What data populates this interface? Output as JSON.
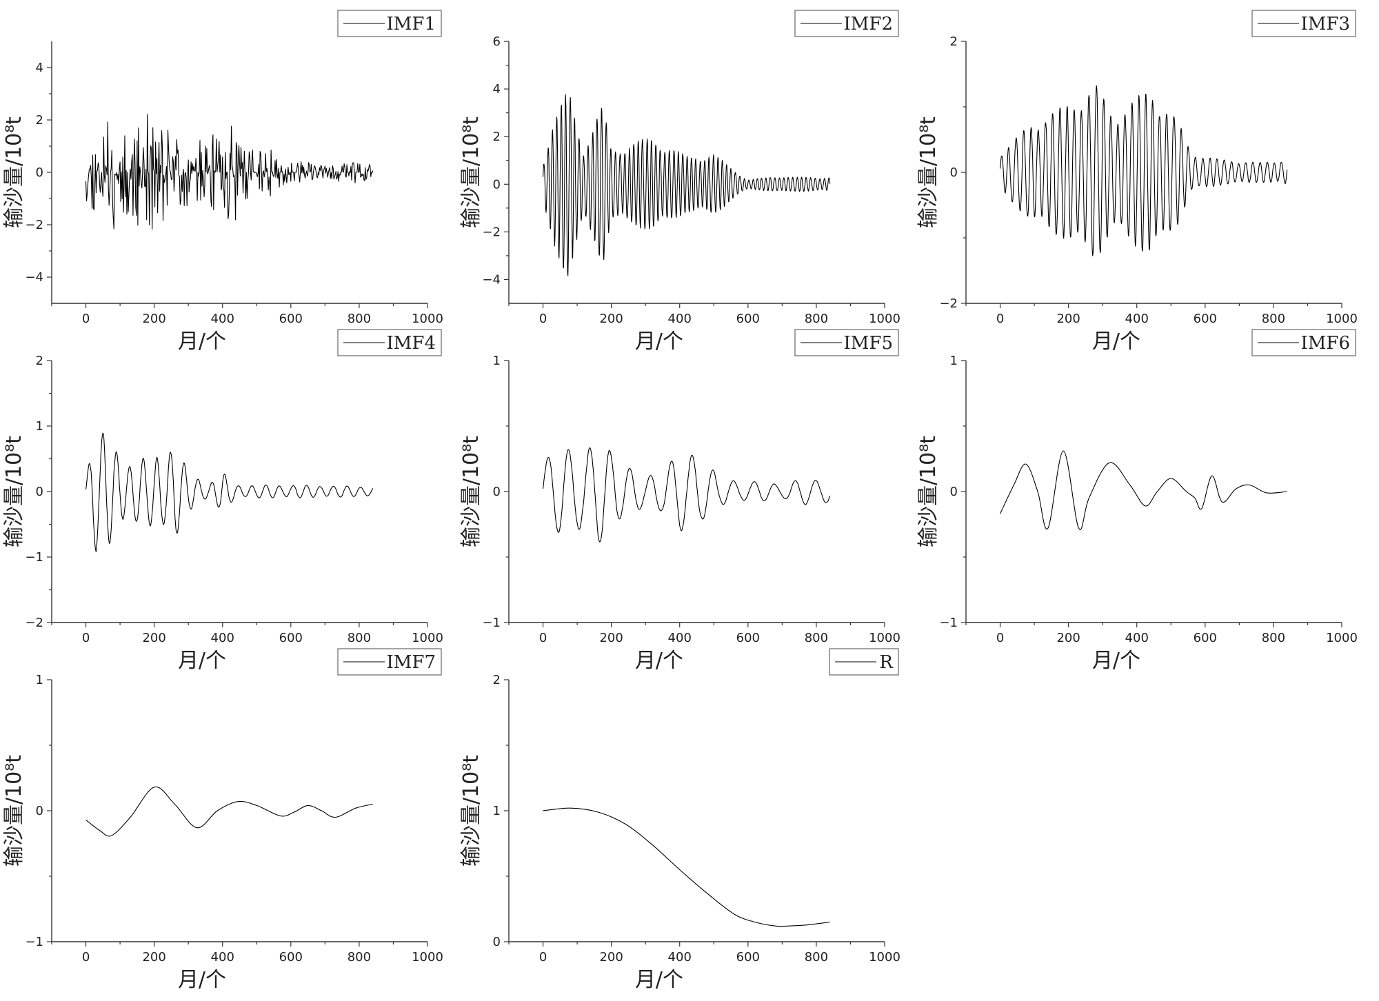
{
  "chart_data": [
    {
      "type": "line",
      "series": [
        {
          "name": "IMF1",
          "generator": {
            "mode": "noise",
            "amps": [
              [
                0,
                1.3
              ],
              [
                60,
                1.8
              ],
              [
                85,
                2.9
              ],
              [
                100,
                1.5
              ],
              [
                180,
                2.3
              ],
              [
                250,
                1.7
              ],
              [
                330,
                1.2
              ],
              [
                440,
                2.1
              ],
              [
                460,
                1.0
              ],
              [
                520,
                1.2
              ],
              [
                580,
                0.5
              ],
              [
                700,
                0.3
              ],
              [
                790,
                0.45
              ],
              [
                840,
                0.3
              ]
            ],
            "seed": 11,
            "step": 2
          }
        }
      ],
      "xlabel": "月/个",
      "ylabel": "输沙量/10⁸t",
      "xlim": [
        -100,
        1000
      ],
      "ylim": [
        -5,
        5
      ],
      "xticks": [
        0,
        200,
        400,
        600,
        800,
        1000
      ],
      "yticks": [
        -4,
        -2,
        0,
        2,
        4
      ],
      "grid": false,
      "legend": "top-right"
    },
    {
      "type": "line",
      "series": [
        {
          "name": "IMF2",
          "generator": {
            "mode": "osc",
            "period": 13,
            "amps": [
              [
                0,
                1.0
              ],
              [
                30,
                2.6
              ],
              [
                75,
                4.1
              ],
              [
                120,
                1.5
              ],
              [
                175,
                3.4
              ],
              [
                200,
                1.5
              ],
              [
                320,
                2.0
              ],
              [
                420,
                1.2
              ],
              [
                500,
                1.3
              ],
              [
                560,
                0.6
              ],
              [
                600,
                0.2
              ],
              [
                700,
                0.35
              ],
              [
                740,
                0.3
              ],
              [
                840,
                0.3
              ]
            ],
            "seed": 22
          }
        }
      ],
      "xlabel": "月/个",
      "ylabel": "输沙量/10⁸t",
      "xlim": [
        -100,
        1000
      ],
      "ylim": [
        -5,
        6
      ],
      "xticks": [
        0,
        200,
        400,
        600,
        800,
        1000
      ],
      "yticks": [
        -4,
        -2,
        0,
        2,
        4,
        6
      ],
      "grid": false,
      "legend": "top-right"
    },
    {
      "type": "line",
      "series": [
        {
          "name": "IMF3",
          "generator": {
            "mode": "osc",
            "period": 21,
            "amps": [
              [
                0,
                0.3
              ],
              [
                60,
                0.6
              ],
              [
                100,
                0.8
              ],
              [
                180,
                1.0
              ],
              [
                280,
                1.35
              ],
              [
                330,
                0.9
              ],
              [
                440,
                1.3
              ],
              [
                520,
                0.8
              ],
              [
                560,
                0.3
              ],
              [
                640,
                0.2
              ],
              [
                760,
                0.15
              ],
              [
                840,
                0.2
              ]
            ],
            "seed": 33
          }
        }
      ],
      "xlabel": "月/个",
      "ylabel": "输沙量/10⁸t",
      "xlim": [
        -100,
        1000
      ],
      "ylim": [
        -2,
        2
      ],
      "xticks": [
        0,
        200,
        400,
        600,
        800,
        1000
      ],
      "yticks": [
        -2,
        0,
        2
      ],
      "grid": false,
      "legend": "top-right"
    },
    {
      "type": "line",
      "series": [
        {
          "name": "IMF4",
          "generator": {
            "mode": "osc",
            "period": 40,
            "amps": [
              [
                0,
                0.3
              ],
              [
                30,
                1.0
              ],
              [
                70,
                0.8
              ],
              [
                120,
                0.45
              ],
              [
                200,
                0.55
              ],
              [
                260,
                0.75
              ],
              [
                300,
                0.3
              ],
              [
                360,
                0.12
              ],
              [
                400,
                0.3
              ],
              [
                440,
                0.1
              ],
              [
                600,
                0.1
              ],
              [
                800,
                0.08
              ],
              [
                840,
                0.08
              ]
            ],
            "seed": 44
          }
        }
      ],
      "xlabel": "月/个",
      "ylabel": "输沙量/10⁸t",
      "xlim": [
        -100,
        1000
      ],
      "ylim": [
        -2,
        2
      ],
      "xticks": [
        0,
        200,
        400,
        600,
        800,
        1000
      ],
      "yticks": [
        -2,
        -1,
        0,
        1,
        2
      ],
      "grid": false,
      "legend": "top-right"
    },
    {
      "type": "line",
      "series": [
        {
          "name": "IMF5",
          "generator": {
            "mode": "osc",
            "period": 60,
            "amps": [
              [
                0,
                0.3
              ],
              [
                80,
                0.33
              ],
              [
                160,
                0.4
              ],
              [
                230,
                0.25
              ],
              [
                300,
                0.1
              ],
              [
                400,
                0.3
              ],
              [
                460,
                0.3
              ],
              [
                520,
                0.1
              ],
              [
                700,
                0.06
              ],
              [
                760,
                0.1
              ],
              [
                840,
                0.1
              ]
            ],
            "seed": 55
          }
        }
      ],
      "xlabel": "月/个",
      "ylabel": "输沙量/10⁸t",
      "xlim": [
        -100,
        1000
      ],
      "ylim": [
        -1,
        1
      ],
      "xticks": [
        0,
        200,
        400,
        600,
        800,
        1000
      ],
      "yticks": [
        -1,
        0,
        1
      ],
      "grid": false,
      "legend": "top-right"
    },
    {
      "type": "line",
      "x": [
        0,
        40,
        75,
        110,
        140,
        185,
        230,
        260,
        320,
        380,
        425,
        460,
        500,
        545,
        570,
        590,
        620,
        650,
        690,
        730,
        780,
        840
      ],
      "series": [
        {
          "name": "IMF6",
          "values": [
            -0.17,
            0.05,
            0.21,
            0.0,
            -0.28,
            0.31,
            -0.28,
            -0.05,
            0.22,
            0.05,
            -0.11,
            0.0,
            0.1,
            0.0,
            -0.05,
            -0.13,
            0.12,
            -0.08,
            0.02,
            0.05,
            -0.01,
            0.0
          ]
        }
      ],
      "xlabel": "月/个",
      "ylabel": "输沙量/10⁸t",
      "xlim": [
        -100,
        1000
      ],
      "ylim": [
        -1,
        1
      ],
      "xticks": [
        0,
        200,
        400,
        600,
        800,
        1000
      ],
      "yticks": [
        -1,
        0,
        1
      ],
      "grid": false,
      "legend": "top-right"
    },
    {
      "type": "line",
      "x": [
        0,
        40,
        75,
        130,
        200,
        260,
        325,
        385,
        445,
        500,
        570,
        610,
        650,
        690,
        730,
        790,
        840
      ],
      "series": [
        {
          "name": "IMF7",
          "values": [
            -0.07,
            -0.15,
            -0.19,
            -0.05,
            0.18,
            0.05,
            -0.13,
            0.0,
            0.07,
            0.04,
            -0.04,
            -0.01,
            0.04,
            0.0,
            -0.05,
            0.02,
            0.05
          ]
        }
      ],
      "xlabel": "月/个",
      "ylabel": "输沙量/10⁸t",
      "xlim": [
        -100,
        1000
      ],
      "ylim": [
        -1,
        1
      ],
      "xticks": [
        0,
        200,
        400,
        600,
        800,
        1000
      ],
      "yticks": [
        -1,
        0,
        1
      ],
      "grid": false,
      "legend": "top-right"
    },
    {
      "type": "line",
      "x": [
        0,
        80,
        160,
        240,
        320,
        400,
        480,
        560,
        620,
        680,
        720,
        780,
        840
      ],
      "series": [
        {
          "name": "R",
          "values": [
            1.0,
            1.02,
            0.99,
            0.9,
            0.74,
            0.55,
            0.37,
            0.21,
            0.15,
            0.12,
            0.12,
            0.13,
            0.15
          ]
        }
      ],
      "xlabel": "月/个",
      "ylabel": "输沙量/10⁸t",
      "xlim": [
        -100,
        1000
      ],
      "ylim": [
        0,
        2
      ],
      "xticks": [
        0,
        200,
        400,
        600,
        800,
        1000
      ],
      "yticks": [
        0,
        1,
        2
      ],
      "grid": false,
      "legend": "top-right"
    }
  ]
}
